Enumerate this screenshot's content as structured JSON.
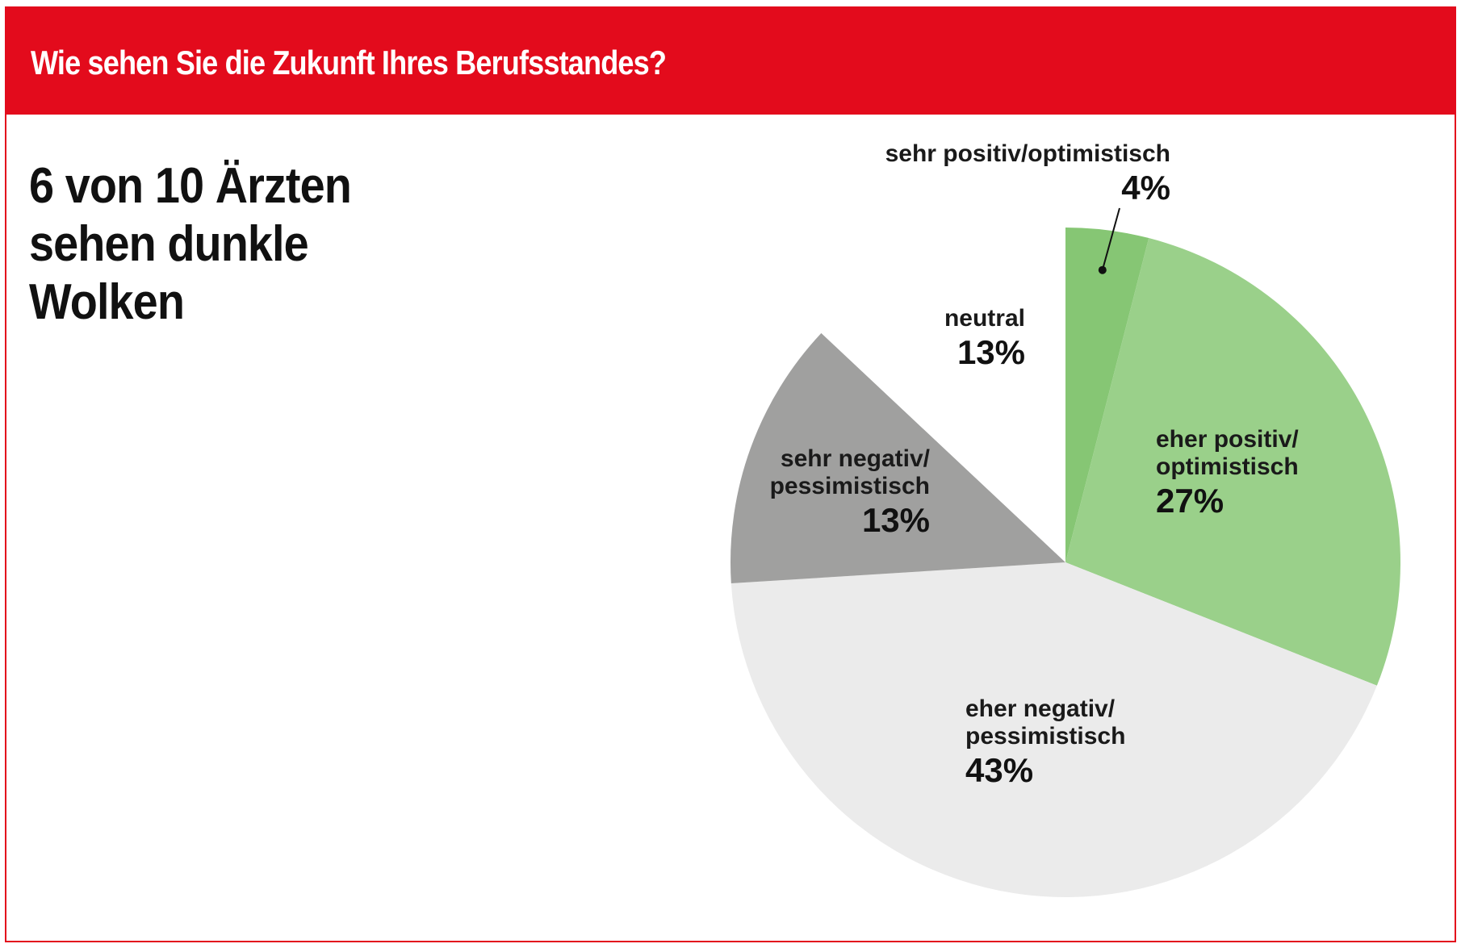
{
  "header": {
    "title": "Wie sehen Sie die Zukunft Ihres Berufsstandes?"
  },
  "headline": [
    "6 von 10 Ärzten",
    "sehen dunkle",
    "Wolken"
  ],
  "colors": {
    "brand": "#e30b1c"
  },
  "chart_data": {
    "type": "pie",
    "title": "",
    "slices": [
      {
        "label": "sehr positiv/optimistisch",
        "value": 4,
        "value_label": "4%",
        "color": "#86c674"
      },
      {
        "label": "eher positiv/ optimistisch",
        "value": 27,
        "value_label": "27%",
        "color": "#9ad08a"
      },
      {
        "label": "eher negativ/ pessimistisch",
        "value": 43,
        "value_label": "43%",
        "color": "#ebebeb"
      },
      {
        "label": "sehr negativ/ pessimistisch",
        "value": 13,
        "value_label": "13%",
        "color": "#a0a09f"
      },
      {
        "label": "neutral",
        "value": 13,
        "value_label": "13%",
        "color": "#ffffff"
      }
    ]
  }
}
